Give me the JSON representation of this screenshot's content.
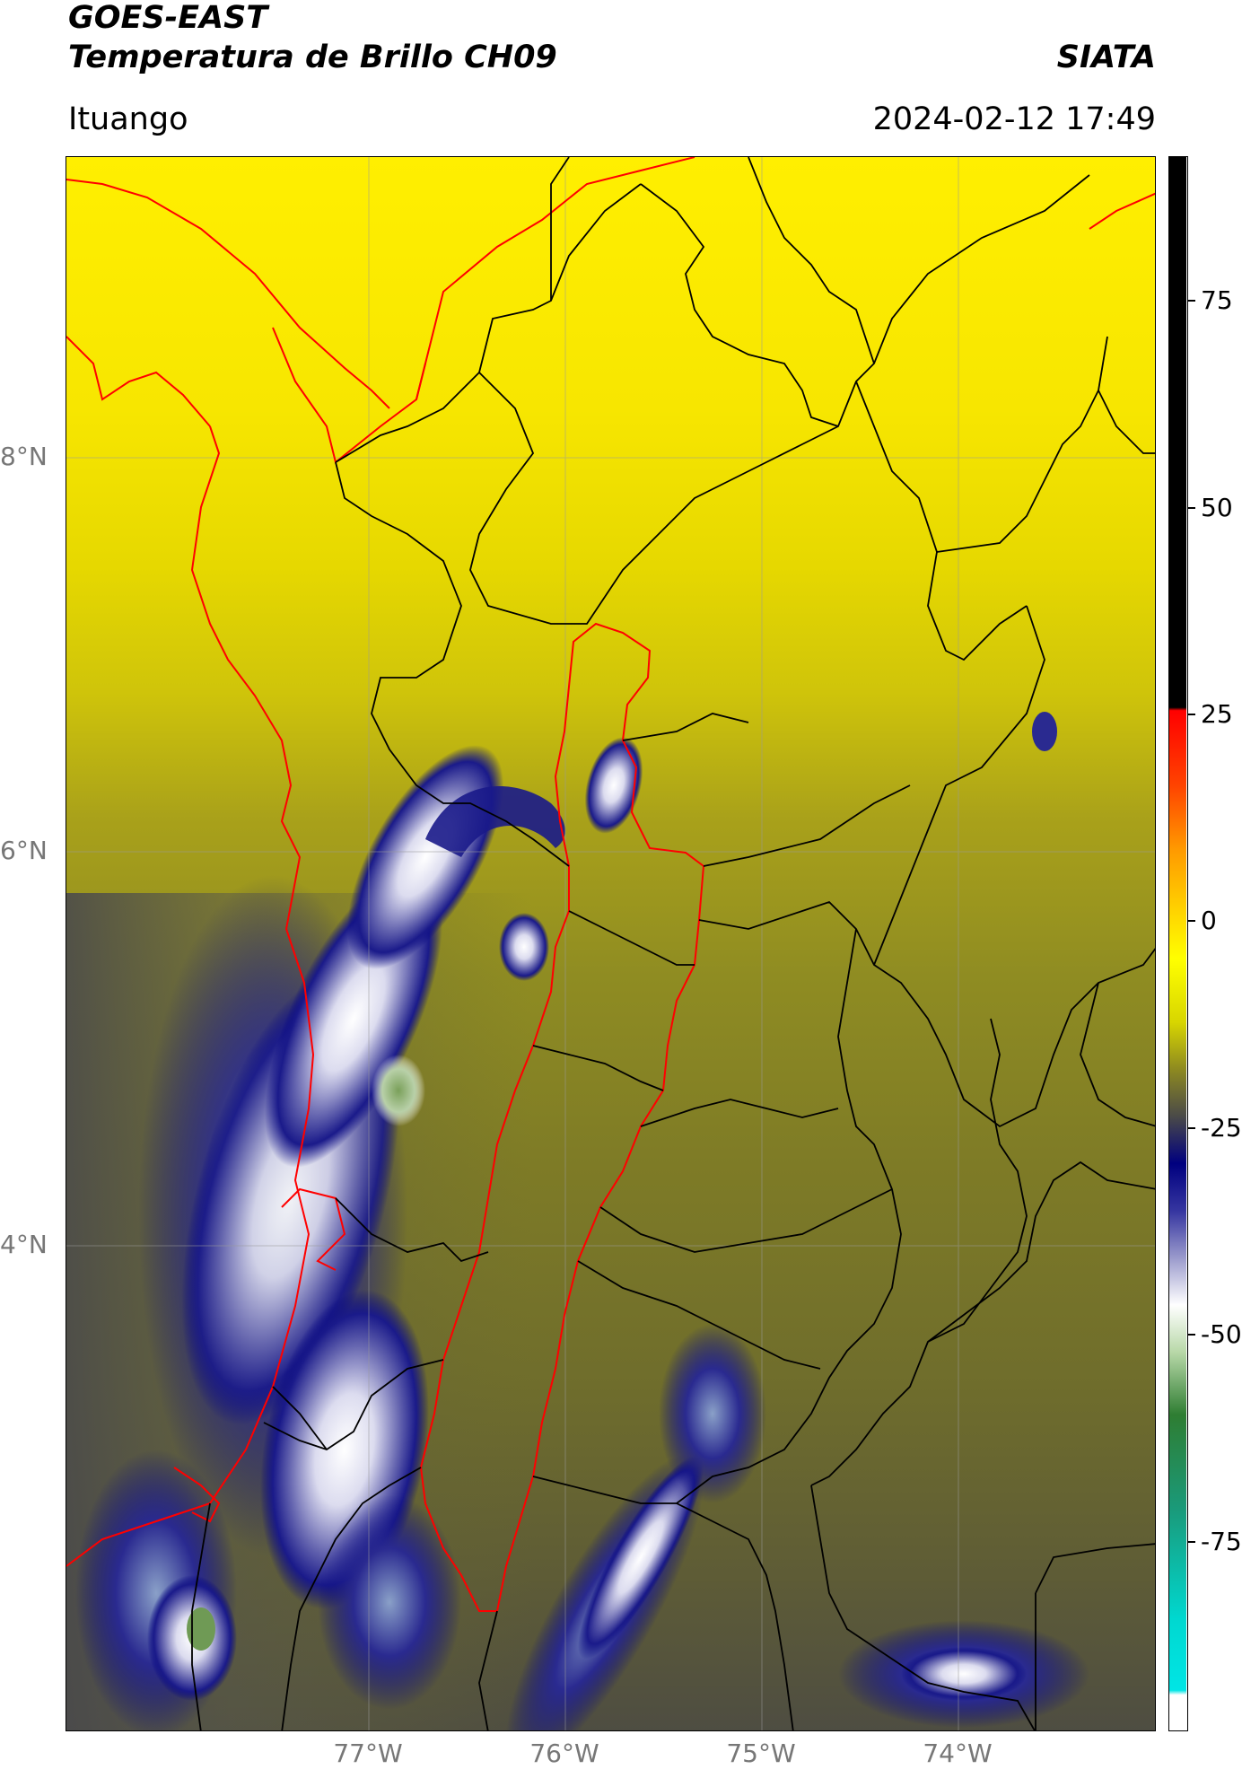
{
  "header": {
    "satellite": "GOES-EAST",
    "product": "Temperatura de Brillo CH09",
    "agency": "SIATA",
    "region": "Ituango",
    "datetime": "2024-02-12 17:49"
  },
  "axes": {
    "lat_ticks": [
      "8°N",
      "6°N",
      "4°N"
    ],
    "lon_ticks": [
      "77°W",
      "76°W",
      "75°W",
      "74°W"
    ]
  },
  "colorbar": {
    "ticks": [
      "75",
      "50",
      "25",
      "0",
      "-25",
      "-50",
      "-75"
    ],
    "colors": {
      "black": "#000000",
      "red": "#ff0000",
      "orange": "#ff8800",
      "yellow": "#ffff00",
      "olive": "#8a8a20",
      "gray": "#4a4a48",
      "navy": "#00007f",
      "white": "#ffffff",
      "green": "#2e7d32",
      "cyan": "#00e5e5"
    }
  },
  "map": {
    "study_area_color": "#ff0000",
    "borders_color": "#000000",
    "coast_color": "#ff0000"
  }
}
